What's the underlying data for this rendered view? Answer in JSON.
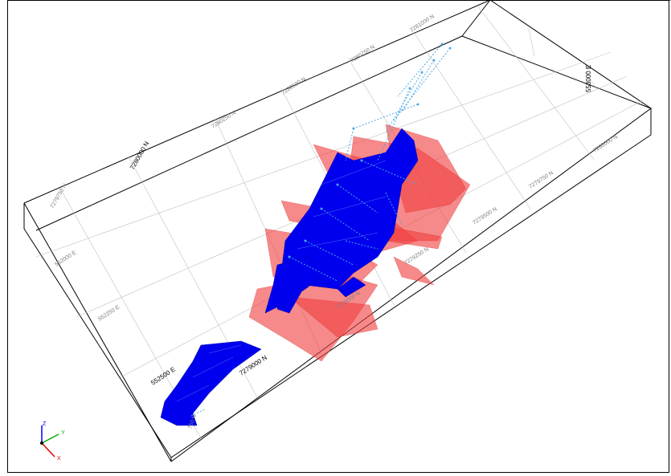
{
  "viewer": {
    "northing_labels": [
      "7281000 N",
      "7280750 N",
      "7280500 N",
      "7280250 N",
      "7280000 N",
      "7279750 N",
      "7279500 N",
      "7279250 N",
      "7279000 N",
      "7278750 N"
    ],
    "easting_labels": [
      "552000 E",
      "552250 E",
      "552500 E",
      "552750 E"
    ],
    "right_labels": [
      "7280000 N",
      "7279750 N",
      "7279500 N",
      "7279250 N",
      "7279000 N",
      "553000 E"
    ],
    "highlight_labels": [
      "7279000 N",
      "552500 E"
    ],
    "partial_label": "750 N",
    "axis": {
      "z": "Z",
      "y": "Y",
      "x": "X"
    },
    "colors": {
      "ore_body": "#0000ff",
      "fault_plane": "#f04040",
      "drillholes": "#4aa8e8"
    }
  }
}
